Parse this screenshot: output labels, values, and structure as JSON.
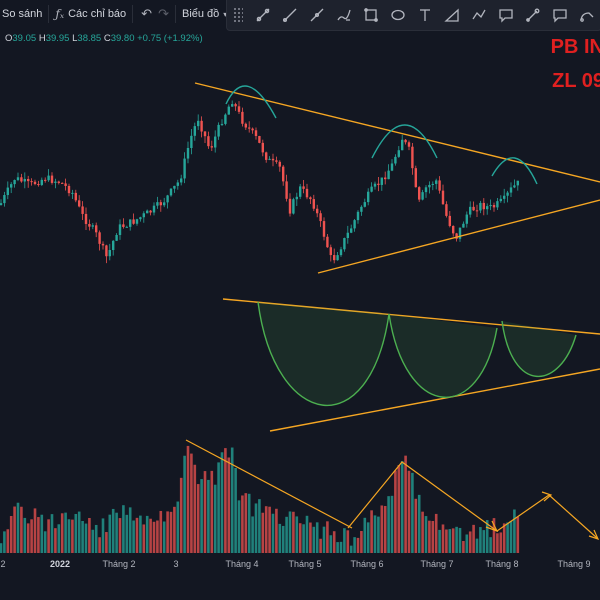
{
  "toolbar": {
    "compare_label": "So sánh",
    "indicators_label": "Các chỉ báo",
    "chart_type_label": "Biểu đồ"
  },
  "drawing_tools": [
    "crosshair-tool-icon",
    "trend-line-icon",
    "ray-icon",
    "brush-icon",
    "rectangle-icon",
    "ellipse-icon",
    "text-tool-icon",
    "path-icon",
    "polyline-icon",
    "callout-icon",
    "arrow-marker-icon",
    "note-icon",
    "path-arrow-icon"
  ],
  "ohlc": {
    "o_label": "O",
    "o": "39.05",
    "h_label": "H",
    "h": "39.95",
    "l_label": "L",
    "l": "38.85",
    "c_label": "C",
    "c": "39.80",
    "change": "+0.75 (+1.92%)"
  },
  "overlay_text": {
    "line1": "PB IN",
    "line2": "ZL 09"
  },
  "x_axis_labels": [
    "2",
    "2022",
    "Tháng 2",
    "3",
    "Tháng 4",
    "Tháng 5",
    "Tháng 6",
    "Tháng 7",
    "Tháng 8",
    "Tháng 9"
  ],
  "colors": {
    "background": "#131722",
    "up": "#26a69a",
    "down": "#ef5350",
    "drawing_orange": "#f5a623",
    "cup_green": "#4caf50",
    "arc_teal": "#26a69a",
    "text_red": "#e02020"
  }
}
